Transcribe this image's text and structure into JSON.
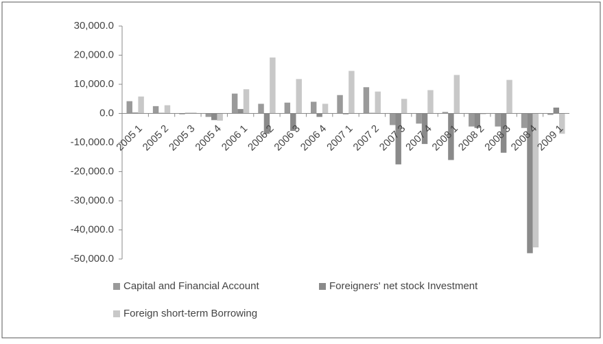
{
  "chart_data": {
    "type": "bar",
    "categories": [
      "2005 1",
      "2005 2",
      "2005 3",
      "2005 4",
      "2006 1",
      "2006 2",
      "2006 3",
      "2006 4",
      "2007 1",
      "2007 2",
      "2007 3",
      "2007 4",
      "2008 1",
      "2008 2",
      "2008 3",
      "2008 4",
      "2009 1"
    ],
    "series": [
      {
        "name": "Capital and Financial Account",
        "color": "#9a9a9a",
        "values": [
          4200,
          2500,
          -300,
          -1200,
          6800,
          3300,
          3700,
          4000,
          6300,
          9000,
          -4000,
          -3500,
          500,
          -4500,
          -4500,
          -5000,
          -500
        ]
      },
      {
        "name": "Foreigners' net stock Investment",
        "color": "#8a8a8a",
        "values": [
          300,
          200,
          200,
          -2300,
          1500,
          -7000,
          -6000,
          -1200,
          -300,
          200,
          -17500,
          -10500,
          -16000,
          -5000,
          -13500,
          -48000,
          2000
        ]
      },
      {
        "name": "Foreign short-term Borrowing",
        "color": "#c8c8c8",
        "values": [
          5800,
          2800,
          300,
          -2500,
          8300,
          19200,
          11800,
          3300,
          14600,
          7500,
          5000,
          8000,
          13200,
          -300,
          11500,
          -46000,
          -7000
        ]
      }
    ],
    "ylim": [
      -50000,
      30000
    ],
    "yticks": [
      {
        "value": -50000,
        "label": "-50,000.0"
      },
      {
        "value": -40000,
        "label": "-40,000.0"
      },
      {
        "value": -30000,
        "label": "-30,000.0"
      },
      {
        "value": -20000,
        "label": "-20,000.0"
      },
      {
        "value": -10000,
        "label": "-10,000.0"
      },
      {
        "value": 0,
        "label": "0.0"
      },
      {
        "value": 10000,
        "label": "10,000.0"
      },
      {
        "value": 20000,
        "label": "20,000.0"
      },
      {
        "value": 30000,
        "label": "30,000.0"
      }
    ],
    "grid": false,
    "legend": "bottom"
  }
}
